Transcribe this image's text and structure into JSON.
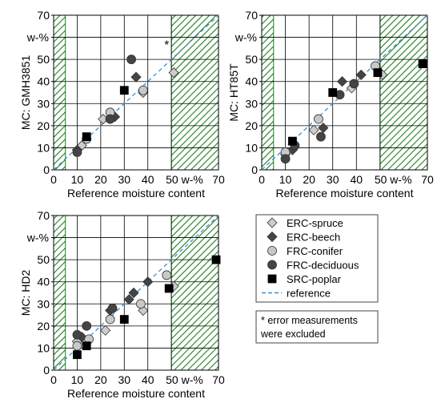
{
  "colors": {
    "hatch": "#1e7d1e",
    "hatch_fill": "#ffffff",
    "reference_line": "#3a8fd6",
    "spruce": "#cccccc",
    "beech": "#444444",
    "conifer": "#c8c8c8",
    "deciduous": "#444444",
    "poplar": "#000000",
    "grid": "#000000"
  },
  "chart_data": [
    {
      "type": "scatter",
      "ylabel": "MC: GMH3851",
      "xlabel": "Reference moisture content",
      "unit_label": "w-%",
      "x_unit_tick": "50 w-%",
      "xlim": [
        0,
        70
      ],
      "ylim": [
        0,
        70
      ],
      "xticks": [
        0,
        10,
        20,
        30,
        40,
        50,
        70
      ],
      "yticks": [
        0,
        10,
        20,
        30,
        40,
        50,
        60,
        70
      ],
      "grid": true,
      "shaded_x_ranges": [
        [
          0,
          5
        ],
        [
          50,
          70
        ]
      ],
      "annotation": "*",
      "series": [
        {
          "name": "ERC-spruce",
          "marker": "diamond",
          "points": [
            [
              12,
              11
            ],
            [
              21,
              23
            ],
            [
              38,
              35
            ],
            [
              51,
              44
            ]
          ]
        },
        {
          "name": "ERC-beech",
          "marker": "diamond",
          "points": [
            [
              10,
              9
            ],
            [
              26,
              24
            ],
            [
              35,
              42
            ]
          ]
        },
        {
          "name": "FRC-conifer",
          "marker": "circle",
          "points": [
            [
              14,
              14
            ],
            [
              24,
              26
            ],
            [
              38,
              36
            ]
          ]
        },
        {
          "name": "FRC-deciduous",
          "marker": "circle",
          "points": [
            [
              10,
              8
            ],
            [
              24,
              23
            ],
            [
              33,
              50
            ]
          ]
        },
        {
          "name": "SRC-poplar",
          "marker": "square",
          "points": [
            [
              14,
              15
            ],
            [
              30,
              36
            ]
          ]
        }
      ]
    },
    {
      "type": "scatter",
      "ylabel": "MC: HT85T",
      "xlabel": "Reference moisture content",
      "unit_label": "w-%",
      "x_unit_tick": "50 w-%",
      "xlim": [
        0,
        70
      ],
      "ylim": [
        0,
        70
      ],
      "xticks": [
        0,
        10,
        20,
        30,
        40,
        50,
        70
      ],
      "yticks": [
        0,
        10,
        20,
        30,
        40,
        50,
        60,
        70
      ],
      "grid": true,
      "shaded_x_ranges": [
        [
          0,
          5
        ],
        [
          50,
          70
        ]
      ],
      "series": [
        {
          "name": "ERC-spruce",
          "marker": "diamond",
          "points": [
            [
              10,
              7
            ],
            [
              22,
              18
            ],
            [
              38,
              37
            ],
            [
              51,
              43
            ]
          ]
        },
        {
          "name": "ERC-beech",
          "marker": "diamond",
          "points": [
            [
              13,
              9
            ],
            [
              26,
              19
            ],
            [
              34,
              40
            ],
            [
              42,
              43
            ]
          ]
        },
        {
          "name": "FRC-conifer",
          "marker": "circle",
          "points": [
            [
              10,
              8
            ],
            [
              24,
              23
            ],
            [
              48,
              47
            ]
          ]
        },
        {
          "name": "FRC-deciduous",
          "marker": "circle",
          "points": [
            [
              10,
              5
            ],
            [
              14,
              11
            ],
            [
              25,
              15
            ],
            [
              33,
              34
            ],
            [
              39,
              39
            ]
          ]
        },
        {
          "name": "SRC-poplar",
          "marker": "square",
          "points": [
            [
              13,
              13
            ],
            [
              30,
              35
            ],
            [
              49,
              44
            ],
            [
              68,
              48
            ]
          ]
        }
      ]
    },
    {
      "type": "scatter",
      "ylabel": "MC: HD2",
      "xlabel": "Reference moisture content",
      "unit_label": "w-%",
      "x_unit_tick": "50 w-%",
      "xlim": [
        0,
        70
      ],
      "ylim": [
        0,
        70
      ],
      "xticks": [
        0,
        10,
        20,
        30,
        40,
        50,
        70
      ],
      "yticks": [
        0,
        10,
        20,
        30,
        40,
        50,
        60,
        70
      ],
      "grid": true,
      "shaded_x_ranges": [
        [
          0,
          5
        ],
        [
          50,
          70
        ]
      ],
      "series": [
        {
          "name": "ERC-spruce",
          "marker": "diamond",
          "points": [
            [
              10,
              13
            ],
            [
              22,
              18
            ],
            [
              38,
              27
            ],
            [
              51,
              38
            ]
          ]
        },
        {
          "name": "ERC-beech",
          "marker": "diamond",
          "points": [
            [
              12,
              15
            ],
            [
              24,
              27
            ],
            [
              32,
              32
            ],
            [
              34,
              35
            ],
            [
              40,
              40
            ]
          ]
        },
        {
          "name": "FRC-conifer",
          "marker": "circle",
          "points": [
            [
              10,
              11
            ],
            [
              15,
              14
            ],
            [
              24,
              23
            ],
            [
              37,
              30
            ],
            [
              48,
              43
            ]
          ]
        },
        {
          "name": "FRC-deciduous",
          "marker": "circle",
          "points": [
            [
              10,
              16
            ],
            [
              14,
              20
            ],
            [
              25,
              28
            ]
          ]
        },
        {
          "name": "SRC-poplar",
          "marker": "square",
          "points": [
            [
              10,
              7
            ],
            [
              14,
              11
            ],
            [
              30,
              23
            ],
            [
              49,
              37
            ],
            [
              69,
              50
            ]
          ]
        }
      ]
    }
  ],
  "legend": {
    "items": [
      {
        "label": "ERC-spruce",
        "marker": "diamond",
        "color_key": "spruce"
      },
      {
        "label": "ERC-beech",
        "marker": "diamond",
        "color_key": "beech"
      },
      {
        "label": "FRC-conifer",
        "marker": "circle",
        "color_key": "conifer"
      },
      {
        "label": "FRC-deciduous",
        "marker": "circle",
        "color_key": "deciduous"
      },
      {
        "label": "SRC-poplar",
        "marker": "square",
        "color_key": "poplar"
      },
      {
        "label": "reference",
        "marker": "dashline",
        "color_key": "reference_line"
      }
    ],
    "note_line1": "* error measurements",
    "note_line2": "were excluded"
  }
}
